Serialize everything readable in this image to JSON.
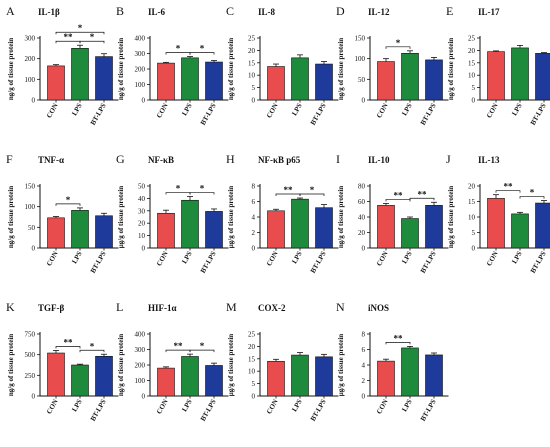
{
  "figure": {
    "colors": {
      "CON": "#e84c4c",
      "LPS": "#1e8a3c",
      "BT-LPS": "#1e3a9a"
    }
  },
  "chart_data": [
    {
      "panel": "A",
      "title": "IL-1β",
      "ylabel": "ng/g of tissue protein",
      "type": "bar",
      "categories": [
        "CON",
        "LPS",
        "BT-LPS"
      ],
      "values": [
        165,
        250,
        210
      ],
      "errors": [
        6,
        15,
        14
      ],
      "ylim": [
        0,
        300
      ],
      "yticks": [
        0,
        100,
        200,
        300
      ],
      "significance": [
        {
          "from": 0,
          "to": 2,
          "label": "*"
        },
        {
          "from": 0,
          "to": 1,
          "label": "**"
        },
        {
          "from": 1,
          "to": 2,
          "label": "*"
        }
      ]
    },
    {
      "panel": "B",
      "title": "IL-6",
      "ylabel": "ng/g of tissue protein",
      "type": "bar",
      "categories": [
        "CON",
        "LPS",
        "BT-LPS"
      ],
      "values": [
        238,
        272,
        245
      ],
      "errors": [
        5,
        8,
        10
      ],
      "ylim": [
        0,
        400
      ],
      "yticks": [
        0,
        100,
        200,
        300,
        400
      ],
      "significance": [
        {
          "from": 0,
          "to": 1,
          "label": "*"
        },
        {
          "from": 1,
          "to": 2,
          "label": "*"
        }
      ]
    },
    {
      "panel": "C",
      "title": "IL-8",
      "ylabel": "ng/g of tissue protein",
      "type": "bar",
      "categories": [
        "CON",
        "LPS",
        "BT-LPS"
      ],
      "values": [
        13.5,
        17,
        14.5
      ],
      "errors": [
        1,
        1.2,
        1
      ],
      "ylim": [
        0,
        25
      ],
      "yticks": [
        0,
        5,
        10,
        15,
        20,
        25
      ],
      "significance": []
    },
    {
      "panel": "D",
      "title": "IL-12",
      "ylabel": "ng/g of tissue protein",
      "type": "bar",
      "categories": [
        "CON",
        "LPS",
        "BT-LPS"
      ],
      "values": [
        93,
        113,
        97
      ],
      "errors": [
        7,
        6,
        6
      ],
      "ylim": [
        0,
        150
      ],
      "yticks": [
        0,
        50,
        100,
        150
      ],
      "significance": [
        {
          "from": 0,
          "to": 1,
          "label": "*"
        }
      ]
    },
    {
      "panel": "E",
      "title": "IL-17",
      "ylabel": "ng/g of tissue protein",
      "type": "bar",
      "categories": [
        "CON",
        "LPS",
        "BT-LPS"
      ],
      "values": [
        19.5,
        21,
        18.8
      ],
      "errors": [
        0.3,
        1,
        0.3
      ],
      "ylim": [
        0,
        25
      ],
      "yticks": [
        0,
        5,
        10,
        15,
        20,
        25
      ],
      "significance": []
    },
    {
      "panel": "F",
      "title": "TNF-α",
      "ylabel": "ng/g of tissue protein",
      "type": "bar",
      "categories": [
        "CON",
        "LPS",
        "BT-LPS"
      ],
      "values": [
        73,
        91,
        78
      ],
      "errors": [
        3,
        6,
        6
      ],
      "ylim": [
        0,
        150
      ],
      "yticks": [
        0,
        50,
        100,
        150
      ],
      "significance": [
        {
          "from": 0,
          "to": 1,
          "label": "*"
        }
      ]
    },
    {
      "panel": "G",
      "title": "NF-κB",
      "ylabel": "μg/g of tissue protein",
      "type": "bar",
      "categories": [
        "CON",
        "LPS",
        "BT-LPS"
      ],
      "values": [
        28,
        38.5,
        29.5
      ],
      "errors": [
        2.5,
        3,
        2
      ],
      "ylim": [
        0,
        50
      ],
      "yticks": [
        0,
        10,
        20,
        30,
        40,
        50
      ],
      "significance": [
        {
          "from": 0,
          "to": 1,
          "label": "*"
        },
        {
          "from": 1,
          "to": 2,
          "label": "*"
        }
      ]
    },
    {
      "panel": "H",
      "title": "NF-κB p65",
      "ylabel": "μg/g of tissue protein",
      "type": "bar",
      "categories": [
        "CON",
        "LPS",
        "BT-LPS"
      ],
      "values": [
        4.8,
        6.3,
        5.2
      ],
      "errors": [
        0.2,
        0.15,
        0.4
      ],
      "ylim": [
        0,
        8
      ],
      "yticks": [
        0,
        2,
        4,
        6,
        8
      ],
      "significance": [
        {
          "from": 0,
          "to": 1,
          "label": "**"
        },
        {
          "from": 1,
          "to": 2,
          "label": "*"
        }
      ]
    },
    {
      "panel": "I",
      "title": "IL-10",
      "ylabel": "ng/g of tissue protein",
      "type": "bar",
      "categories": [
        "CON",
        "LPS",
        "BT-LPS"
      ],
      "values": [
        55,
        38,
        55
      ],
      "errors": [
        2.5,
        2,
        4
      ],
      "ylim": [
        0,
        80
      ],
      "yticks": [
        0,
        20,
        40,
        60,
        80
      ],
      "significance": [
        {
          "from": 0,
          "to": 1,
          "label": "**"
        },
        {
          "from": 1,
          "to": 2,
          "label": "**"
        }
      ]
    },
    {
      "panel": "J",
      "title": "IL-13",
      "ylabel": "ng/g of tissue protein",
      "type": "bar",
      "categories": [
        "CON",
        "LPS",
        "BT-LPS"
      ],
      "values": [
        16,
        11,
        14.5
      ],
      "errors": [
        1.2,
        0.5,
        0.8
      ],
      "ylim": [
        0,
        20
      ],
      "yticks": [
        0,
        5,
        10,
        15,
        20
      ],
      "significance": [
        {
          "from": 0,
          "to": 1,
          "label": "**"
        },
        {
          "from": 1,
          "to": 2,
          "label": "*"
        }
      ]
    },
    {
      "panel": "K",
      "title": "TGF-β",
      "ylabel": "ng/g of tissue protein",
      "type": "bar",
      "categories": [
        "CON",
        "LPS",
        "BT-LPS"
      ],
      "values": [
        520,
        375,
        480
      ],
      "errors": [
        30,
        10,
        25
      ],
      "ylim": [
        0,
        750
      ],
      "yticks": [
        0,
        250,
        500,
        750
      ],
      "significance": [
        {
          "from": 0,
          "to": 1,
          "label": "**"
        },
        {
          "from": 1,
          "to": 2,
          "label": "*"
        }
      ]
    },
    {
      "panel": "L",
      "title": "HIF-1α",
      "ylabel": "ng/g of tissue protein",
      "type": "bar",
      "categories": [
        "CON",
        "LPS",
        "BT-LPS"
      ],
      "values": [
        180,
        255,
        197
      ],
      "errors": [
        8,
        15,
        15
      ],
      "ylim": [
        0,
        400
      ],
      "yticks": [
        0,
        100,
        200,
        300,
        400
      ],
      "significance": [
        {
          "from": 0,
          "to": 1,
          "label": "**"
        },
        {
          "from": 1,
          "to": 2,
          "label": "*"
        }
      ]
    },
    {
      "panel": "M",
      "title": "COX-2",
      "ylabel": "μg/g of tissue protein",
      "type": "bar",
      "categories": [
        "CON",
        "LPS",
        "BT-LPS"
      ],
      "values": [
        14,
        16.5,
        15.8
      ],
      "errors": [
        0.8,
        1,
        1
      ],
      "ylim": [
        0,
        25
      ],
      "yticks": [
        0,
        5,
        10,
        15,
        20,
        25
      ],
      "significance": []
    },
    {
      "panel": "N",
      "title": "iNOS",
      "ylabel": "μg/g of tissue protein",
      "type": "bar",
      "categories": [
        "CON",
        "LPS",
        "BT-LPS"
      ],
      "values": [
        4.5,
        6.2,
        5.3
      ],
      "errors": [
        0.25,
        0.2,
        0.25
      ],
      "ylim": [
        0,
        8
      ],
      "yticks": [
        0,
        2,
        4,
        6,
        8
      ],
      "significance": [
        {
          "from": 0,
          "to": 1,
          "label": "**"
        }
      ]
    }
  ]
}
